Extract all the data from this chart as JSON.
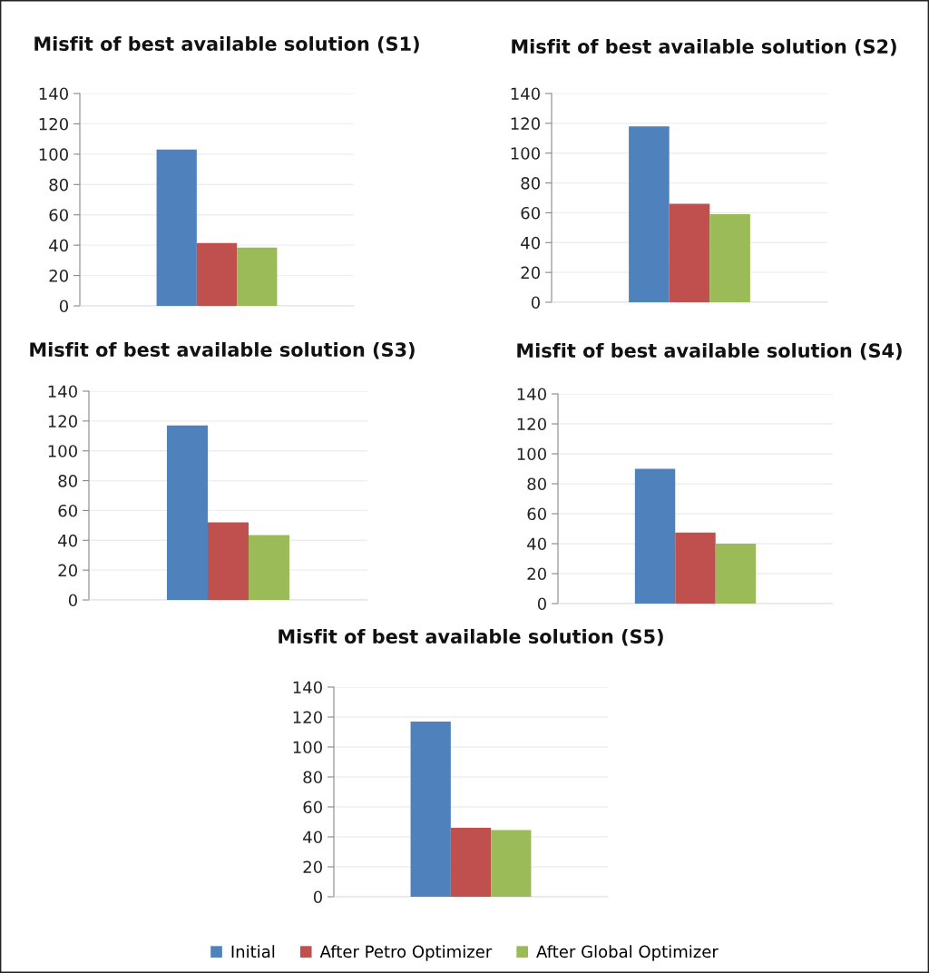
{
  "chart_data": [
    {
      "type": "bar",
      "title": "Misfit of best available solution (S1)",
      "categories": [
        null
      ],
      "series": [
        {
          "name": "Initial",
          "color": "#4f81bd",
          "values": [
            103
          ]
        },
        {
          "name": "After Petro Optimizer",
          "color": "#c0504d",
          "values": [
            41.5
          ]
        },
        {
          "name": "After Global Optimizer",
          "color": "#9bbb59",
          "values": [
            38.5
          ]
        }
      ],
      "ylim": [
        0,
        140
      ],
      "yticks": [
        0,
        20,
        40,
        60,
        80,
        100,
        120,
        140
      ],
      "grid": "y",
      "legend": "bottom"
    },
    {
      "type": "bar",
      "title": "Misfit of best available solution (S2)",
      "categories": [
        null
      ],
      "series": [
        {
          "color": "#4f81bd",
          "values": [
            118
          ]
        },
        {
          "color": "#c0504d",
          "values": [
            66
          ]
        },
        {
          "color": "#9bbb59",
          "values": [
            59
          ]
        }
      ],
      "ylim": [
        0,
        140
      ],
      "yticks": [
        0,
        20,
        40,
        60,
        80,
        100,
        120,
        140
      ],
      "grid": "y"
    },
    {
      "type": "bar",
      "title": "Misfit of best available solution (S3)",
      "categories": [
        null
      ],
      "series": [
        {
          "color": "#4f81bd",
          "values": [
            117
          ]
        },
        {
          "color": "#c0504d",
          "values": [
            52
          ]
        },
        {
          "color": "#9bbb59",
          "values": [
            43.5
          ]
        }
      ],
      "ylim": [
        0,
        140
      ],
      "yticks": [
        0,
        20,
        40,
        60,
        80,
        100,
        120,
        140
      ],
      "grid": "y"
    },
    {
      "type": "bar",
      "title": "Misfit of best available solution (S4)",
      "categories": [
        null
      ],
      "series": [
        {
          "color": "#4f81bd",
          "values": [
            90
          ]
        },
        {
          "color": "#c0504d",
          "values": [
            47.5
          ]
        },
        {
          "color": "#9bbb59",
          "values": [
            40
          ]
        }
      ],
      "ylim": [
        0,
        140
      ],
      "yticks": [
        0,
        20,
        40,
        60,
        80,
        100,
        120,
        140
      ],
      "grid": "y"
    },
    {
      "type": "bar",
      "title": "Misfit of best available solution (S5)",
      "categories": [
        null
      ],
      "series": [
        {
          "color": "#4f81bd",
          "values": [
            117
          ]
        },
        {
          "color": "#c0504d",
          "values": [
            46
          ]
        },
        {
          "color": "#9bbb59",
          "values": [
            44.5
          ]
        }
      ],
      "ylim": [
        0,
        140
      ],
      "yticks": [
        0,
        20,
        40,
        60,
        80,
        100,
        120,
        140
      ],
      "grid": "y"
    }
  ]
}
